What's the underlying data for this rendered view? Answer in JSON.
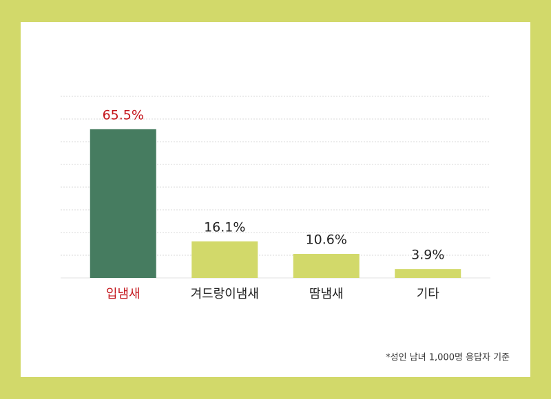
{
  "chart_data": {
    "type": "bar",
    "categories": [
      "입냄새",
      "겨드랑이냄새",
      "땀냄새",
      "기타"
    ],
    "values": [
      65.5,
      16.1,
      10.6,
      3.9
    ],
    "value_labels": [
      "65.5%",
      "16.1%",
      "10.6%",
      "3.9%"
    ],
    "colors": [
      "#467c60",
      "#d2d96a",
      "#d2d96a",
      "#d2d96a"
    ],
    "label_colors": [
      "#c4161c",
      "#222222",
      "#222222",
      "#222222"
    ],
    "ylim": [
      0,
      80
    ],
    "yticks": [
      0,
      10,
      20,
      30,
      40,
      50,
      60,
      70,
      80
    ],
    "grid": true,
    "note": "*성인 남녀 1,000명 응답자 기준"
  }
}
